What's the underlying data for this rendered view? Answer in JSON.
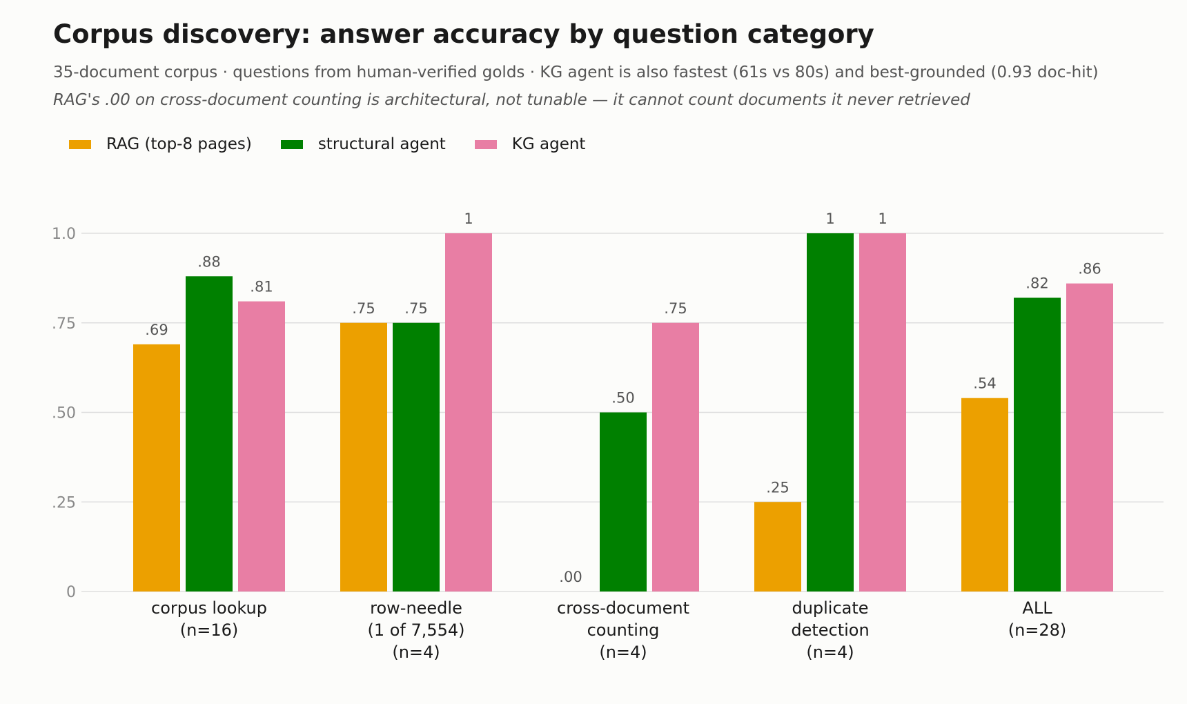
{
  "chart_data": {
    "type": "bar",
    "title": "Corpus discovery: answer accuracy by question category",
    "subtitle": "35-document corpus · questions from human-verified golds · KG agent is also fastest (61s vs 80s) and best-grounded (0.93 doc-hit)",
    "annotation": "RAG's .00 on cross-document counting is architectural, not tunable — it cannot count documents it never retrieved",
    "xlabel": "",
    "ylabel": "",
    "ylim": [
      0,
      1.0
    ],
    "yticks": [
      {
        "value": 0,
        "label": "0"
      },
      {
        "value": 0.25,
        "label": ".25"
      },
      {
        "value": 0.5,
        "label": ".50"
      },
      {
        "value": 0.75,
        "label": ".75"
      },
      {
        "value": 1.0,
        "label": "1.0"
      }
    ],
    "grid": true,
    "legend_position": "top-left",
    "categories": [
      [
        "corpus lookup",
        "(n=16)"
      ],
      [
        "row-needle",
        "(1 of 7,554)",
        "(n=4)"
      ],
      [
        "cross-document",
        "counting",
        "(n=4)"
      ],
      [
        "duplicate",
        "detection",
        "(n=4)"
      ],
      [
        "ALL",
        "(n=28)"
      ]
    ],
    "series": [
      {
        "name": "RAG (top-8 pages)",
        "color": "#eca000",
        "values": [
          0.69,
          0.75,
          0.0,
          0.25,
          0.54
        ],
        "labels": [
          ".69",
          ".75",
          ".00",
          ".25",
          ".54"
        ]
      },
      {
        "name": "structural agent",
        "color": "#008000",
        "values": [
          0.88,
          0.75,
          0.5,
          1.0,
          0.82
        ],
        "labels": [
          ".88",
          ".75",
          ".50",
          "1",
          ".82"
        ]
      },
      {
        "name": "KG agent",
        "color": "#e87ea4",
        "values": [
          0.81,
          1.0,
          0.75,
          1.0,
          0.86
        ],
        "labels": [
          ".81",
          "1",
          ".75",
          "1",
          ".86"
        ]
      }
    ]
  }
}
